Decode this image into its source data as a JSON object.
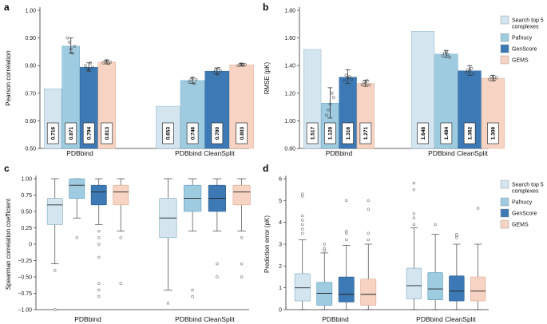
{
  "colors": {
    "search": "#d4e5ef",
    "pafnucy": "#9fcbe1",
    "genscore": "#3d7ab5",
    "gems": "#f6d3c2",
    "axis": "#333333",
    "grid": "#dddddd"
  },
  "legend": [
    {
      "label": "Search top 5",
      "label2": "complexes",
      "color_key": "search"
    },
    {
      "label": "Pafnucy",
      "color_key": "pafnucy"
    },
    {
      "label": "GenScore",
      "color_key": "genscore"
    },
    {
      "label": "GEMS",
      "color_key": "gems"
    }
  ],
  "chart_data": [
    {
      "panel": "a",
      "type": "bar",
      "ylabel": "Pearson correlation",
      "ylim": [
        0.5,
        1.0
      ],
      "yticks": [
        "0.50",
        "0.60",
        "0.70",
        "0.80",
        "0.90",
        "1.00"
      ],
      "categories": [
        "PDBbind",
        "PDBbind CleanSplit"
      ],
      "series": [
        {
          "name": "Search top 5 complexes",
          "values": [
            0.716,
            0.653
          ],
          "labels": [
            "0.716",
            "0.653"
          ],
          "err": [
            null,
            null
          ],
          "points": [
            [],
            []
          ]
        },
        {
          "name": "Pafnucy",
          "values": [
            0.871,
            0.746
          ],
          "labels": [
            "0.871",
            "0.746"
          ],
          "err": [
            [
              0.845,
              0.9
            ],
            [
              0.735,
              0.757
            ]
          ],
          "points": [
            [
              0.9,
              0.885,
              0.86,
              0.845,
              0.87
            ],
            [
              0.74,
              0.748,
              0.755,
              0.735,
              0.75
            ]
          ]
        },
        {
          "name": "GenScore",
          "values": [
            0.794,
            0.78
          ],
          "labels": [
            "0.794",
            "0.780"
          ],
          "err": [
            [
              0.78,
              0.81
            ],
            [
              0.768,
              0.792
            ]
          ],
          "points": [
            [
              0.8,
              0.79,
              0.785,
              0.81,
              0.795
            ],
            [
              0.775,
              0.785,
              0.77,
              0.79,
              0.78
            ]
          ]
        },
        {
          "name": "GEMS",
          "values": [
            0.813,
            0.803
          ],
          "labels": [
            "0.813",
            "0.803"
          ],
          "err": [
            [
              0.806,
              0.82
            ],
            [
              0.798,
              0.808
            ]
          ],
          "points": [
            [
              0.81,
              0.815,
              0.818,
              0.808,
              0.812
            ],
            [
              0.8,
              0.805,
              0.806,
              0.801,
              0.804
            ]
          ]
        }
      ]
    },
    {
      "panel": "b",
      "type": "bar",
      "ylabel": "RMSE (pK)",
      "ylim": [
        0.8,
        1.8
      ],
      "yticks": [
        "0.80",
        "1.00",
        "1.20",
        "1.40",
        "1.60",
        "1.80"
      ],
      "categories": [
        "PDBbind",
        "PDBbind CleanSplit"
      ],
      "series": [
        {
          "name": "Search top 5 complexes",
          "values": [
            1.517,
            1.648
          ],
          "labels": [
            "1.517",
            "1.648"
          ],
          "err": [
            null,
            null
          ],
          "points": [
            [],
            []
          ]
        },
        {
          "name": "Pafnucy",
          "values": [
            1.128,
            1.484
          ],
          "labels": [
            "1.128",
            "1.484"
          ],
          "err": [
            [
              1.02,
              1.24
            ],
            [
              1.46,
              1.51
            ]
          ],
          "points": [
            [
              1.04,
              1.08,
              1.12,
              1.2,
              1.17
            ],
            [
              1.47,
              1.49,
              1.5,
              1.48,
              1.46
            ]
          ]
        },
        {
          "name": "GenScore",
          "values": [
            1.316,
            1.362
          ],
          "labels": [
            "1.316",
            "1.362"
          ],
          "err": [
            [
              1.27,
              1.37
            ],
            [
              1.33,
              1.4
            ]
          ],
          "points": [
            [
              1.29,
              1.33,
              1.31,
              1.32,
              1.3
            ],
            [
              1.35,
              1.37,
              1.36,
              1.38,
              1.34
            ]
          ]
        },
        {
          "name": "GEMS",
          "values": [
            1.271,
            1.308
          ],
          "labels": [
            "1.271",
            "1.308"
          ],
          "err": [
            [
              1.25,
              1.295
            ],
            [
              1.29,
              1.33
            ]
          ],
          "points": [
            [
              1.26,
              1.28,
              1.27,
              1.29,
              1.26
            ],
            [
              1.3,
              1.32,
              1.31,
              1.3,
              1.315
            ]
          ]
        }
      ]
    },
    {
      "panel": "c",
      "type": "box",
      "ylabel": "Spearman correlation coefficient",
      "ylim": [
        -1.0,
        1.0
      ],
      "yticks": [
        "−1.00",
        "−0.75",
        "−0.50",
        "−0.25",
        "0",
        "0.25",
        "0.50",
        "0.75",
        "1.00"
      ],
      "categories": [
        "PDBbind",
        "PDBbind CleanSplit"
      ],
      "series": [
        {
          "name": "Search top 5 complexes",
          "boxes": [
            {
              "wlo": -0.3,
              "q1": 0.3,
              "med": 0.6,
              "q3": 0.7,
              "whi": 1.0,
              "outliers": [
                -0.4,
                -1.0
              ]
            },
            {
              "wlo": -0.7,
              "q1": 0.1,
              "med": 0.4,
              "q3": 0.7,
              "whi": 1.0,
              "outliers": [
                -0.9
              ]
            }
          ]
        },
        {
          "name": "Pafnucy",
          "boxes": [
            {
              "wlo": 0.4,
              "q1": 0.7,
              "med": 0.9,
              "q3": 1.0,
              "whi": 1.0,
              "outliers": [
                0.1
              ]
            },
            {
              "wlo": 0.2,
              "q1": 0.5,
              "med": 0.7,
              "q3": 0.9,
              "whi": 1.0,
              "outliers": [
                -0.7,
                -0.8
              ]
            }
          ]
        },
        {
          "name": "GenScore",
          "boxes": [
            {
              "wlo": 0.3,
              "q1": 0.6,
              "med": 0.8,
              "q3": 0.9,
              "whi": 1.0,
              "outliers": [
                0.2,
                0.1,
                0.0,
                -0.2,
                -0.6,
                -0.7,
                -0.8
              ]
            },
            {
              "wlo": 0.2,
              "q1": 0.5,
              "med": 0.7,
              "q3": 0.9,
              "whi": 1.0,
              "outliers": [
                -0.3,
                -0.5
              ]
            }
          ]
        },
        {
          "name": "GEMS",
          "boxes": [
            {
              "wlo": 0.2,
              "q1": 0.6,
              "med": 0.8,
              "q3": 0.9,
              "whi": 1.0,
              "outliers": [
                0.1,
                -0.6
              ]
            },
            {
              "wlo": 0.2,
              "q1": 0.6,
              "med": 0.8,
              "q3": 0.9,
              "whi": 1.0,
              "outliers": [
                0.1,
                -0.3,
                -0.5
              ]
            }
          ]
        }
      ]
    },
    {
      "panel": "d",
      "type": "box",
      "ylabel": "Prediction error (pK)",
      "ylim": [
        0,
        6
      ],
      "yticks": [
        "0",
        "1",
        "2",
        "3",
        "4",
        "5",
        "6"
      ],
      "categories": [
        "PDBbind",
        "PDBbind CleanSplit"
      ],
      "series": [
        {
          "name": "Search top 5 complexes",
          "boxes": [
            {
              "wlo": 0.0,
              "q1": 0.4,
              "med": 1.0,
              "q3": 1.65,
              "whi": 3.2,
              "outliers": [
                3.5,
                3.7,
                3.9,
                4.1,
                4.3,
                5.2,
                5.3
              ]
            },
            {
              "wlo": 0.0,
              "q1": 0.5,
              "med": 1.1,
              "q3": 1.9,
              "whi": 3.75,
              "outliers": [
                3.9,
                4.2,
                4.4,
                5.5,
                5.8
              ]
            }
          ]
        },
        {
          "name": "Pafnucy",
          "boxes": [
            {
              "wlo": 0.0,
              "q1": 0.2,
              "med": 0.75,
              "q3": 1.25,
              "whi": 2.6,
              "outliers": [
                2.7,
                2.8,
                3.0
              ]
            },
            {
              "wlo": 0.0,
              "q1": 0.45,
              "med": 0.95,
              "q3": 1.7,
              "whi": 3.45,
              "outliers": [
                3.9
              ]
            }
          ]
        },
        {
          "name": "GenScore",
          "boxes": [
            {
              "wlo": 0.0,
              "q1": 0.35,
              "med": 0.7,
              "q3": 1.5,
              "whi": 2.95,
              "outliers": [
                3.2,
                3.5,
                3.6,
                5.0
              ]
            },
            {
              "wlo": 0.0,
              "q1": 0.4,
              "med": 0.85,
              "q3": 1.55,
              "whi": 3.0,
              "outliers": [
                3.3,
                3.4,
                3.45
              ]
            }
          ]
        },
        {
          "name": "GEMS",
          "boxes": [
            {
              "wlo": 0.0,
              "q1": 0.2,
              "med": 0.7,
              "q3": 1.4,
              "whi": 3.0,
              "outliers": [
                3.2,
                3.5,
                4.6,
                5.0
              ]
            },
            {
              "wlo": 0.0,
              "q1": 0.4,
              "med": 0.85,
              "q3": 1.5,
              "whi": 3.0,
              "outliers": [
                4.65
              ]
            }
          ]
        }
      ]
    }
  ]
}
